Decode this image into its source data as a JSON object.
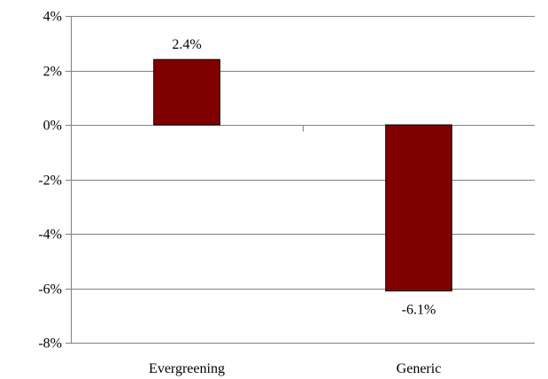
{
  "chart_data": {
    "type": "bar",
    "title": "",
    "xlabel": "",
    "ylabel": "",
    "categories": [
      "Evergreening",
      "Generic"
    ],
    "values": [
      2.4,
      -6.1
    ],
    "data_labels": [
      "2.4%",
      "-6.1%"
    ],
    "ylim": [
      -8,
      4
    ],
    "yticks": [
      4,
      2,
      0,
      -2,
      -4,
      -6,
      -8
    ],
    "ytick_labels": [
      "4%",
      "2%",
      "0%",
      "-2%",
      "-4%",
      "-6%",
      "-8%"
    ],
    "grid": true,
    "legend": "none",
    "bar_color": "#800000",
    "grid_color": "#808080"
  }
}
